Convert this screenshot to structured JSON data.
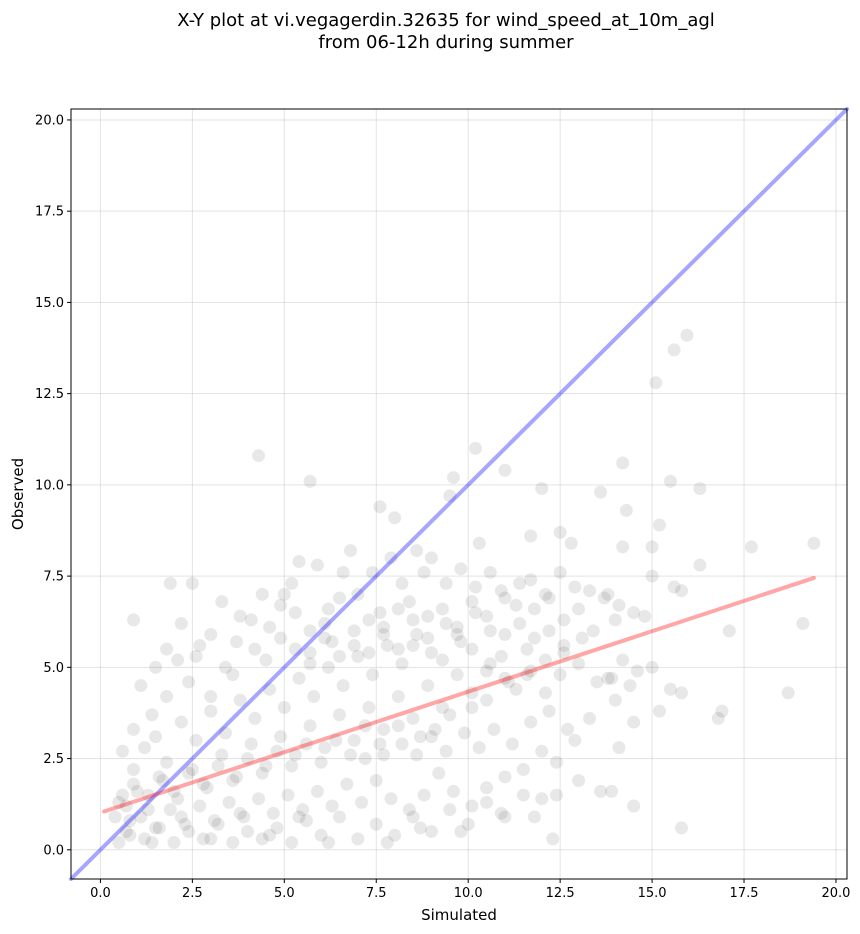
{
  "chart_data": {
    "type": "scatter",
    "title_line1": "X-Y plot at vi.vegagerdin.32635 for wind_speed_at_10m_agl",
    "title_line2": "from 06-12h during summer",
    "xlabel": "Simulated",
    "ylabel": "Observed",
    "xlim": [
      -0.8,
      20.3
    ],
    "ylim": [
      -0.8,
      20.3
    ],
    "x_ticks": [
      0.0,
      2.5,
      5.0,
      7.5,
      10.0,
      12.5,
      15.0,
      17.5,
      20.0
    ],
    "x_tick_labels": [
      "0.0",
      "2.5",
      "5.0",
      "7.5",
      "10.0",
      "12.5",
      "15.0",
      "17.5",
      "20.0"
    ],
    "y_ticks": [
      0.0,
      2.5,
      5.0,
      7.5,
      10.0,
      12.5,
      15.0,
      17.5,
      20.0
    ],
    "y_tick_labels": [
      "0.0",
      "2.5",
      "5.0",
      "7.5",
      "10.0",
      "12.5",
      "15.0",
      "17.5",
      "20.0"
    ],
    "grid": true,
    "marker_color": "#000000",
    "identity_line_color": "#0000ff",
    "fit_line_color": "#ff0000",
    "identity_line": [
      [
        -0.8,
        -0.8
      ],
      [
        20.3,
        20.3
      ]
    ],
    "fit_line": [
      [
        0.1,
        1.05
      ],
      [
        19.4,
        7.45
      ]
    ],
    "points": [
      [
        15.6,
        13.7
      ],
      [
        15.95,
        14.1
      ],
      [
        15.1,
        12.8
      ],
      [
        4.3,
        10.8
      ],
      [
        5.7,
        10.1
      ],
      [
        10.2,
        11.0
      ],
      [
        11.0,
        10.4
      ],
      [
        14.2,
        10.6
      ],
      [
        15.5,
        10.1
      ],
      [
        16.3,
        9.9
      ],
      [
        12.0,
        9.9
      ],
      [
        13.6,
        9.8
      ],
      [
        14.3,
        9.3
      ],
      [
        9.6,
        10.2
      ],
      [
        9.5,
        9.7
      ],
      [
        7.6,
        9.4
      ],
      [
        8.0,
        9.1
      ],
      [
        10.3,
        8.4
      ],
      [
        11.7,
        8.6
      ],
      [
        12.5,
        8.7
      ],
      [
        12.8,
        8.4
      ],
      [
        14.2,
        8.3
      ],
      [
        15.0,
        8.3
      ],
      [
        15.2,
        8.9
      ],
      [
        17.7,
        8.3
      ],
      [
        19.4,
        8.4
      ],
      [
        19.1,
        6.2
      ],
      [
        18.7,
        4.3
      ],
      [
        17.1,
        6.0
      ],
      [
        16.8,
        3.6
      ],
      [
        15.8,
        4.3
      ],
      [
        15.8,
        0.6
      ],
      [
        13.8,
        4.7
      ],
      [
        14.5,
        3.5
      ],
      [
        14.5,
        1.2
      ],
      [
        12.3,
        0.3
      ],
      [
        13.0,
        1.9
      ],
      [
        15.0,
        7.5
      ],
      [
        15.8,
        7.1
      ],
      [
        16.3,
        7.8
      ],
      [
        15.6,
        7.2
      ],
      [
        14.8,
        6.4
      ],
      [
        14.0,
        6.3
      ],
      [
        13.1,
        5.8
      ],
      [
        12.6,
        5.6
      ],
      [
        12.1,
        5.2
      ],
      [
        11.6,
        4.8
      ],
      [
        11.0,
        4.7
      ],
      [
        10.5,
        4.1
      ],
      [
        10.1,
        3.9
      ],
      [
        9.5,
        3.7
      ],
      [
        9.1,
        3.3
      ],
      [
        8.7,
        3.1
      ],
      [
        8.2,
        2.9
      ],
      [
        7.7,
        2.6
      ],
      [
        7.2,
        2.5
      ],
      [
        0.5,
        0.2
      ],
      [
        0.8,
        0.4
      ],
      [
        1.2,
        0.3
      ],
      [
        1.6,
        0.6
      ],
      [
        2.0,
        0.2
      ],
      [
        2.4,
        0.5
      ],
      [
        2.8,
        0.3
      ],
      [
        3.2,
        0.7
      ],
      [
        3.6,
        0.2
      ],
      [
        4.0,
        0.5
      ],
      [
        4.4,
        0.3
      ],
      [
        4.8,
        0.6
      ],
      [
        5.2,
        0.2
      ],
      [
        5.6,
        0.8
      ],
      [
        6.0,
        0.4
      ],
      [
        6.5,
        0.9
      ],
      [
        7.0,
        0.3
      ],
      [
        7.5,
        0.7
      ],
      [
        8.0,
        0.4
      ],
      [
        8.5,
        0.9
      ],
      [
        9.0,
        0.5
      ],
      [
        9.5,
        1.1
      ],
      [
        10.0,
        0.7
      ],
      [
        10.5,
        1.3
      ],
      [
        11.0,
        0.9
      ],
      [
        11.5,
        1.5
      ],
      [
        12.0,
        1.4
      ],
      [
        0.7,
        1.2
      ],
      [
        1.0,
        1.6
      ],
      [
        1.3,
        1.1
      ],
      [
        1.7,
        1.9
      ],
      [
        2.1,
        1.4
      ],
      [
        2.5,
        2.2
      ],
      [
        2.9,
        1.7
      ],
      [
        3.3,
        2.6
      ],
      [
        3.7,
        2.0
      ],
      [
        4.1,
        2.9
      ],
      [
        4.5,
        2.3
      ],
      [
        4.9,
        3.1
      ],
      [
        5.3,
        2.6
      ],
      [
        5.7,
        3.4
      ],
      [
        6.1,
        2.8
      ],
      [
        6.5,
        3.7
      ],
      [
        6.9,
        3.0
      ],
      [
        7.3,
        3.9
      ],
      [
        7.7,
        3.3
      ],
      [
        8.1,
        4.2
      ],
      [
        8.5,
        3.6
      ],
      [
        8.9,
        4.5
      ],
      [
        9.3,
        3.9
      ],
      [
        9.7,
        4.8
      ],
      [
        10.1,
        4.3
      ],
      [
        10.6,
        5.1
      ],
      [
        11.1,
        4.6
      ],
      [
        11.6,
        5.5
      ],
      [
        0.6,
        2.7
      ],
      [
        0.9,
        3.3
      ],
      [
        1.1,
        4.5
      ],
      [
        0.9,
        6.3
      ],
      [
        1.4,
        3.7
      ],
      [
        1.8,
        4.2
      ],
      [
        2.1,
        5.2
      ],
      [
        1.9,
        7.3
      ],
      [
        2.5,
        7.3
      ],
      [
        2.4,
        4.6
      ],
      [
        2.7,
        5.6
      ],
      [
        3.0,
        4.2
      ],
      [
        3.4,
        5.0
      ],
      [
        3.8,
        6.4
      ],
      [
        3.6,
        4.8
      ],
      [
        4.2,
        5.5
      ],
      [
        4.6,
        6.1
      ],
      [
        4.4,
        7.0
      ],
      [
        4.9,
        6.7
      ],
      [
        5.0,
        7.0
      ],
      [
        5.4,
        7.9
      ],
      [
        5.2,
        7.3
      ],
      [
        5.7,
        6.0
      ],
      [
        5.9,
        7.8
      ],
      [
        6.2,
        6.6
      ],
      [
        6.6,
        7.6
      ],
      [
        6.3,
        5.7
      ],
      [
        6.8,
        8.2
      ],
      [
        7.0,
        7.0
      ],
      [
        7.4,
        7.6
      ],
      [
        7.6,
        6.5
      ],
      [
        7.9,
        8.0
      ],
      [
        8.2,
        7.3
      ],
      [
        8.6,
        8.2
      ],
      [
        8.4,
        6.8
      ],
      [
        8.8,
        7.6
      ],
      [
        9.0,
        8.0
      ],
      [
        9.4,
        7.3
      ],
      [
        9.8,
        7.7
      ],
      [
        10.2,
        7.2
      ],
      [
        10.6,
        7.6
      ],
      [
        11.0,
        6.9
      ],
      [
        11.4,
        7.3
      ],
      [
        11.8,
        6.6
      ],
      [
        12.2,
        6.9
      ],
      [
        12.6,
        6.3
      ],
      [
        13.0,
        6.6
      ],
      [
        13.4,
        6.0
      ],
      [
        13.8,
        7.0
      ],
      [
        14.2,
        5.2
      ],
      [
        14.6,
        4.9
      ],
      [
        15.0,
        5.0
      ],
      [
        14.0,
        4.1
      ],
      [
        13.3,
        3.6
      ],
      [
        12.9,
        3.0
      ],
      [
        12.4,
        2.4
      ],
      [
        12.0,
        2.7
      ],
      [
        11.5,
        2.2
      ],
      [
        11.0,
        2.0
      ],
      [
        10.5,
        1.7
      ],
      [
        10.1,
        1.2
      ],
      [
        9.6,
        1.6
      ],
      [
        9.2,
        2.1
      ],
      [
        8.8,
        1.5
      ],
      [
        8.4,
        1.1
      ],
      [
        7.9,
        1.4
      ],
      [
        7.5,
        1.9
      ],
      [
        7.1,
        1.3
      ],
      [
        6.7,
        1.8
      ],
      [
        6.3,
        1.2
      ],
      [
        5.9,
        1.6
      ],
      [
        5.5,
        1.1
      ],
      [
        5.1,
        1.5
      ],
      [
        4.7,
        1.0
      ],
      [
        4.3,
        1.4
      ],
      [
        3.9,
        0.9
      ],
      [
        3.5,
        1.3
      ],
      [
        3.1,
        0.8
      ],
      [
        2.7,
        1.2
      ],
      [
        2.3,
        0.7
      ],
      [
        1.9,
        1.1
      ],
      [
        1.5,
        0.6
      ],
      [
        1.1,
        0.9
      ],
      [
        0.7,
        0.5
      ],
      [
        0.4,
        0.9
      ],
      [
        0.6,
        1.5
      ],
      [
        0.9,
        2.2
      ],
      [
        1.2,
        2.8
      ],
      [
        1.5,
        3.1
      ],
      [
        1.8,
        2.4
      ],
      [
        2.2,
        3.5
      ],
      [
        2.6,
        3.0
      ],
      [
        3.0,
        3.8
      ],
      [
        3.4,
        3.2
      ],
      [
        3.8,
        4.1
      ],
      [
        4.2,
        3.6
      ],
      [
        4.6,
        4.4
      ],
      [
        5.0,
        3.9
      ],
      [
        5.4,
        4.7
      ],
      [
        5.8,
        4.2
      ],
      [
        6.2,
        5.0
      ],
      [
        6.6,
        4.5
      ],
      [
        7.0,
        5.3
      ],
      [
        7.4,
        4.8
      ],
      [
        7.8,
        5.6
      ],
      [
        8.2,
        5.1
      ],
      [
        8.6,
        5.9
      ],
      [
        9.0,
        5.4
      ],
      [
        9.4,
        6.2
      ],
      [
        9.8,
        5.7
      ],
      [
        10.2,
        6.5
      ],
      [
        10.6,
        6.0
      ],
      [
        11.0,
        5.9
      ],
      [
        11.4,
        6.2
      ],
      [
        11.8,
        5.8
      ],
      [
        12.2,
        6.0
      ],
      [
        12.6,
        5.4
      ],
      [
        13.0,
        5.1
      ],
      [
        13.5,
        4.6
      ],
      [
        13.9,
        4.7
      ],
      [
        14.4,
        4.5
      ],
      [
        15.2,
        3.8
      ],
      [
        16.9,
        3.8
      ],
      [
        15.5,
        4.4
      ],
      [
        14.1,
        2.8
      ],
      [
        13.6,
        1.6
      ],
      [
        13.9,
        1.6
      ],
      [
        12.7,
        3.3
      ],
      [
        12.2,
        3.8
      ],
      [
        11.7,
        3.5
      ],
      [
        11.2,
        2.9
      ],
      [
        10.7,
        3.3
      ],
      [
        10.3,
        2.8
      ],
      [
        9.9,
        3.2
      ],
      [
        9.4,
        2.7
      ],
      [
        9.0,
        3.1
      ],
      [
        8.6,
        2.6
      ],
      [
        8.1,
        3.4
      ],
      [
        7.6,
        2.9
      ],
      [
        7.2,
        3.4
      ],
      [
        6.8,
        2.6
      ],
      [
        6.4,
        3.0
      ],
      [
        6.0,
        2.4
      ],
      [
        5.6,
        2.9
      ],
      [
        5.2,
        2.3
      ],
      [
        4.8,
        2.7
      ],
      [
        4.4,
        2.1
      ],
      [
        4.0,
        2.5
      ],
      [
        3.6,
        1.9
      ],
      [
        3.2,
        2.3
      ],
      [
        2.8,
        1.8
      ],
      [
        2.4,
        2.1
      ],
      [
        2.0,
        1.6
      ],
      [
        1.6,
        2.0
      ],
      [
        1.3,
        1.5
      ],
      [
        0.9,
        1.8
      ],
      [
        0.5,
        1.3
      ],
      [
        0.8,
        0.8
      ],
      [
        1.4,
        0.2
      ],
      [
        2.2,
        0.9
      ],
      [
        3.0,
        0.3
      ],
      [
        3.8,
        1.0
      ],
      [
        4.6,
        0.4
      ],
      [
        5.4,
        0.9
      ],
      [
        6.2,
        0.2
      ],
      [
        7.8,
        0.2
      ],
      [
        8.7,
        0.6
      ],
      [
        9.8,
        0.5
      ],
      [
        10.9,
        1.0
      ],
      [
        11.8,
        0.9
      ],
      [
        12.4,
        1.5
      ],
      [
        5.3,
        5.5
      ],
      [
        5.7,
        5.1
      ],
      [
        6.1,
        5.8
      ],
      [
        6.5,
        5.3
      ],
      [
        6.9,
        6.0
      ],
      [
        7.3,
        5.4
      ],
      [
        7.7,
        6.1
      ],
      [
        8.1,
        5.5
      ],
      [
        8.5,
        6.3
      ],
      [
        8.9,
        5.8
      ],
      [
        9.3,
        6.6
      ],
      [
        9.7,
        6.1
      ],
      [
        10.1,
        6.8
      ],
      [
        10.5,
        6.4
      ],
      [
        10.9,
        7.1
      ],
      [
        11.3,
        6.7
      ],
      [
        11.7,
        7.4
      ],
      [
        12.1,
        7.0
      ],
      [
        12.5,
        7.6
      ],
      [
        12.9,
        7.2
      ],
      [
        13.3,
        7.1
      ],
      [
        13.7,
        6.9
      ],
      [
        14.1,
        6.7
      ],
      [
        14.5,
        6.5
      ],
      [
        3.0,
        5.9
      ],
      [
        2.6,
        5.3
      ],
      [
        2.2,
        6.2
      ],
      [
        1.8,
        5.5
      ],
      [
        1.5,
        5.0
      ],
      [
        3.3,
        6.8
      ],
      [
        3.7,
        5.7
      ],
      [
        4.1,
        6.3
      ],
      [
        4.5,
        5.2
      ],
      [
        4.9,
        5.8
      ],
      [
        5.3,
        6.5
      ],
      [
        5.7,
        5.4
      ],
      [
        6.1,
        6.2
      ],
      [
        6.5,
        6.9
      ],
      [
        6.9,
        5.6
      ],
      [
        7.3,
        6.3
      ],
      [
        7.7,
        5.9
      ],
      [
        8.1,
        6.6
      ],
      [
        8.5,
        5.6
      ],
      [
        8.9,
        6.4
      ],
      [
        9.3,
        5.2
      ],
      [
        9.7,
        5.9
      ],
      [
        10.1,
        5.5
      ],
      [
        10.5,
        4.9
      ],
      [
        10.9,
        5.3
      ],
      [
        11.3,
        4.4
      ],
      [
        11.7,
        4.9
      ],
      [
        12.1,
        4.3
      ],
      [
        12.5,
        4.8
      ]
    ]
  }
}
